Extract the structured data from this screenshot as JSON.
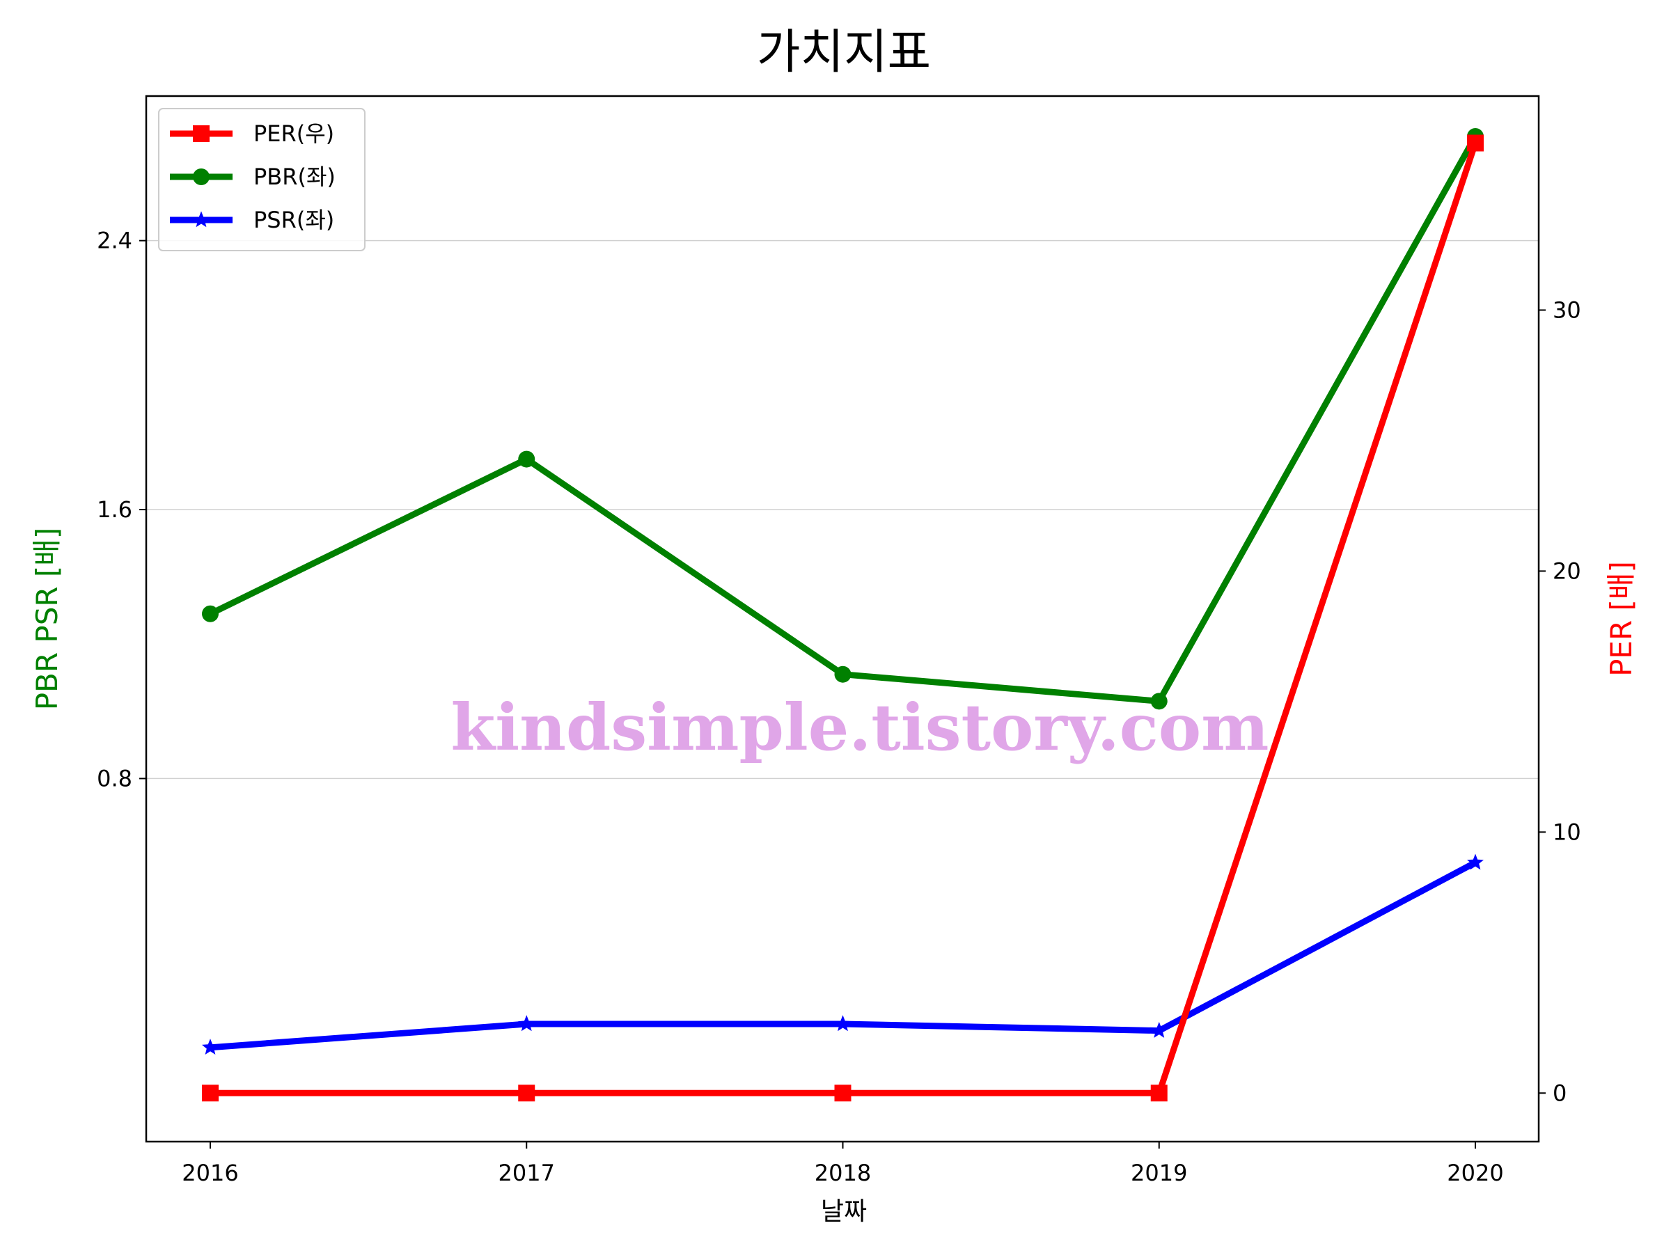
{
  "chart_data": {
    "type": "line",
    "title": "가치지표",
    "xlabel": "날짜",
    "ylabel_left": "PBR PSR [배]",
    "ylabel_right": "PER [배]",
    "categories": [
      "2016",
      "2017",
      "2018",
      "2019",
      "2020"
    ],
    "left_axis": {
      "ylim": [
        -0.28,
        2.83
      ],
      "ticks": [
        0.8,
        1.6,
        2.4
      ],
      "tick_labels": [
        "0.8",
        "1.6",
        "2.4"
      ]
    },
    "right_axis": {
      "ylim": [
        -1.86,
        38.2
      ],
      "ticks": [
        0,
        10,
        20,
        30
      ],
      "tick_labels": [
        "0",
        "10",
        "20",
        "30"
      ]
    },
    "series": [
      {
        "name": "PER(우)",
        "axis": "right",
        "color": "#ff0000",
        "marker": "square",
        "values": [
          0,
          0,
          0,
          0,
          36.4
        ]
      },
      {
        "name": "PBR(좌)",
        "axis": "left",
        "color": "#008000",
        "marker": "circle",
        "values": [
          1.29,
          1.75,
          1.11,
          1.03,
          2.71
        ]
      },
      {
        "name": "PSR(좌)",
        "axis": "left",
        "color": "#0000ff",
        "marker": "star",
        "values": [
          0.0,
          0.07,
          0.07,
          0.05,
          0.55
        ]
      }
    ],
    "grid": "horizontal",
    "legend_position": "top-left"
  },
  "watermark": "kindsimple.tistory.com"
}
